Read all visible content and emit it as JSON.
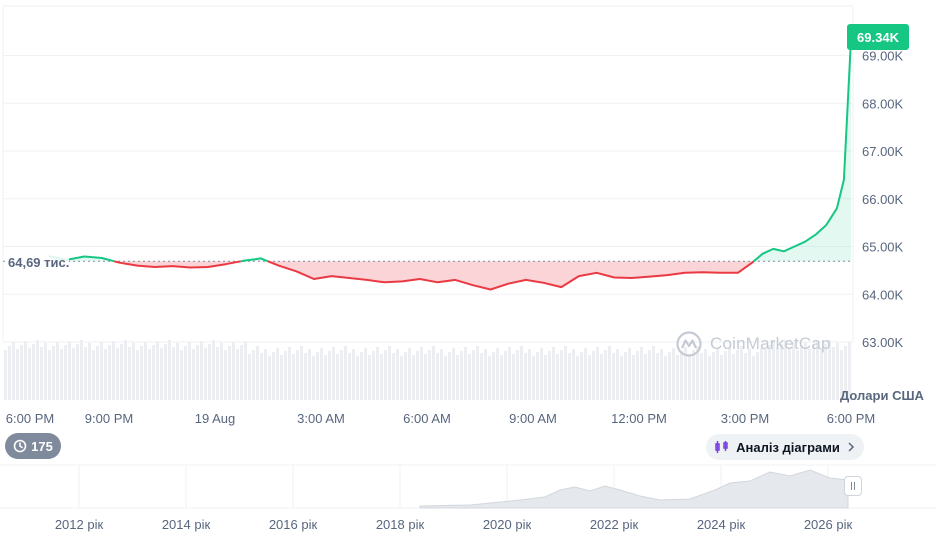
{
  "chart_data": {
    "type": "line",
    "y_axis_ticks": [
      "63.00K",
      "64.00K",
      "65.00K",
      "66.00K",
      "67.00K",
      "68.00K",
      "69.00K"
    ],
    "y_tick_values": [
      63000,
      64000,
      65000,
      66000,
      67000,
      68000,
      69000
    ],
    "ylim": [
      62000,
      70000
    ],
    "x_axis_ticks": [
      "6:00 PM",
      "9:00 PM",
      "19 Aug",
      "3:00 AM",
      "6:00 AM",
      "9:00 AM",
      "12:00 PM",
      "3:00 PM",
      "6:00 PM"
    ],
    "x_tick_hours": [
      0,
      3,
      6,
      9,
      12,
      15,
      18,
      21,
      24
    ],
    "reference_value": 64690,
    "reference_label": "64,69 тис.",
    "current_price_label": "69.34K",
    "current_price": 69340,
    "x": [
      1.3,
      1.8,
      2.3,
      2.8,
      3.3,
      3.8,
      4.3,
      4.8,
      5.3,
      5.8,
      6.3,
      6.8,
      7.3,
      7.8,
      8.3,
      8.8,
      9.3,
      9.8,
      10.3,
      10.8,
      11.3,
      11.8,
      12.3,
      12.8,
      13.3,
      13.8,
      14.3,
      14.8,
      15.3,
      15.8,
      16.3,
      16.8,
      17.3,
      17.8,
      18.3,
      18.8,
      19.3,
      19.8,
      20.3,
      20.8,
      21.2,
      21.5,
      21.8,
      22.1,
      22.4,
      22.7,
      23.0,
      23.3,
      23.6,
      23.8,
      24.0
    ],
    "y": [
      64800,
      64720,
      64790,
      64760,
      64660,
      64600,
      64570,
      64590,
      64560,
      64570,
      64630,
      64700,
      64750,
      64600,
      64480,
      64320,
      64380,
      64340,
      64300,
      64250,
      64270,
      64320,
      64250,
      64300,
      64190,
      64100,
      64220,
      64300,
      64240,
      64150,
      64380,
      64450,
      64350,
      64340,
      64370,
      64400,
      64450,
      64460,
      64450,
      64450,
      64660,
      64850,
      64950,
      64900,
      65000,
      65100,
      65250,
      65450,
      65800,
      66400,
      69340
    ],
    "legend": "none",
    "grid": "horizontal"
  },
  "currency_label": "Долари США",
  "watermark": "CoinMarketCap",
  "history": {
    "count": "175"
  },
  "analysis_button_label": "Аналіз діаграми",
  "navigator": {
    "year_ticks": [
      "2012 рік",
      "2014 рік",
      "2016 рік",
      "2018 рік",
      "2020 рік",
      "2022 рік",
      "2024 рік",
      "2026 рік"
    ],
    "years": [
      2012,
      2014,
      2016,
      2018,
      2020,
      2022,
      2024,
      2026
    ]
  },
  "colors": {
    "up": "#16c784",
    "down": "#ea3943",
    "grid": "#eff2f5",
    "text": "#58667e"
  }
}
